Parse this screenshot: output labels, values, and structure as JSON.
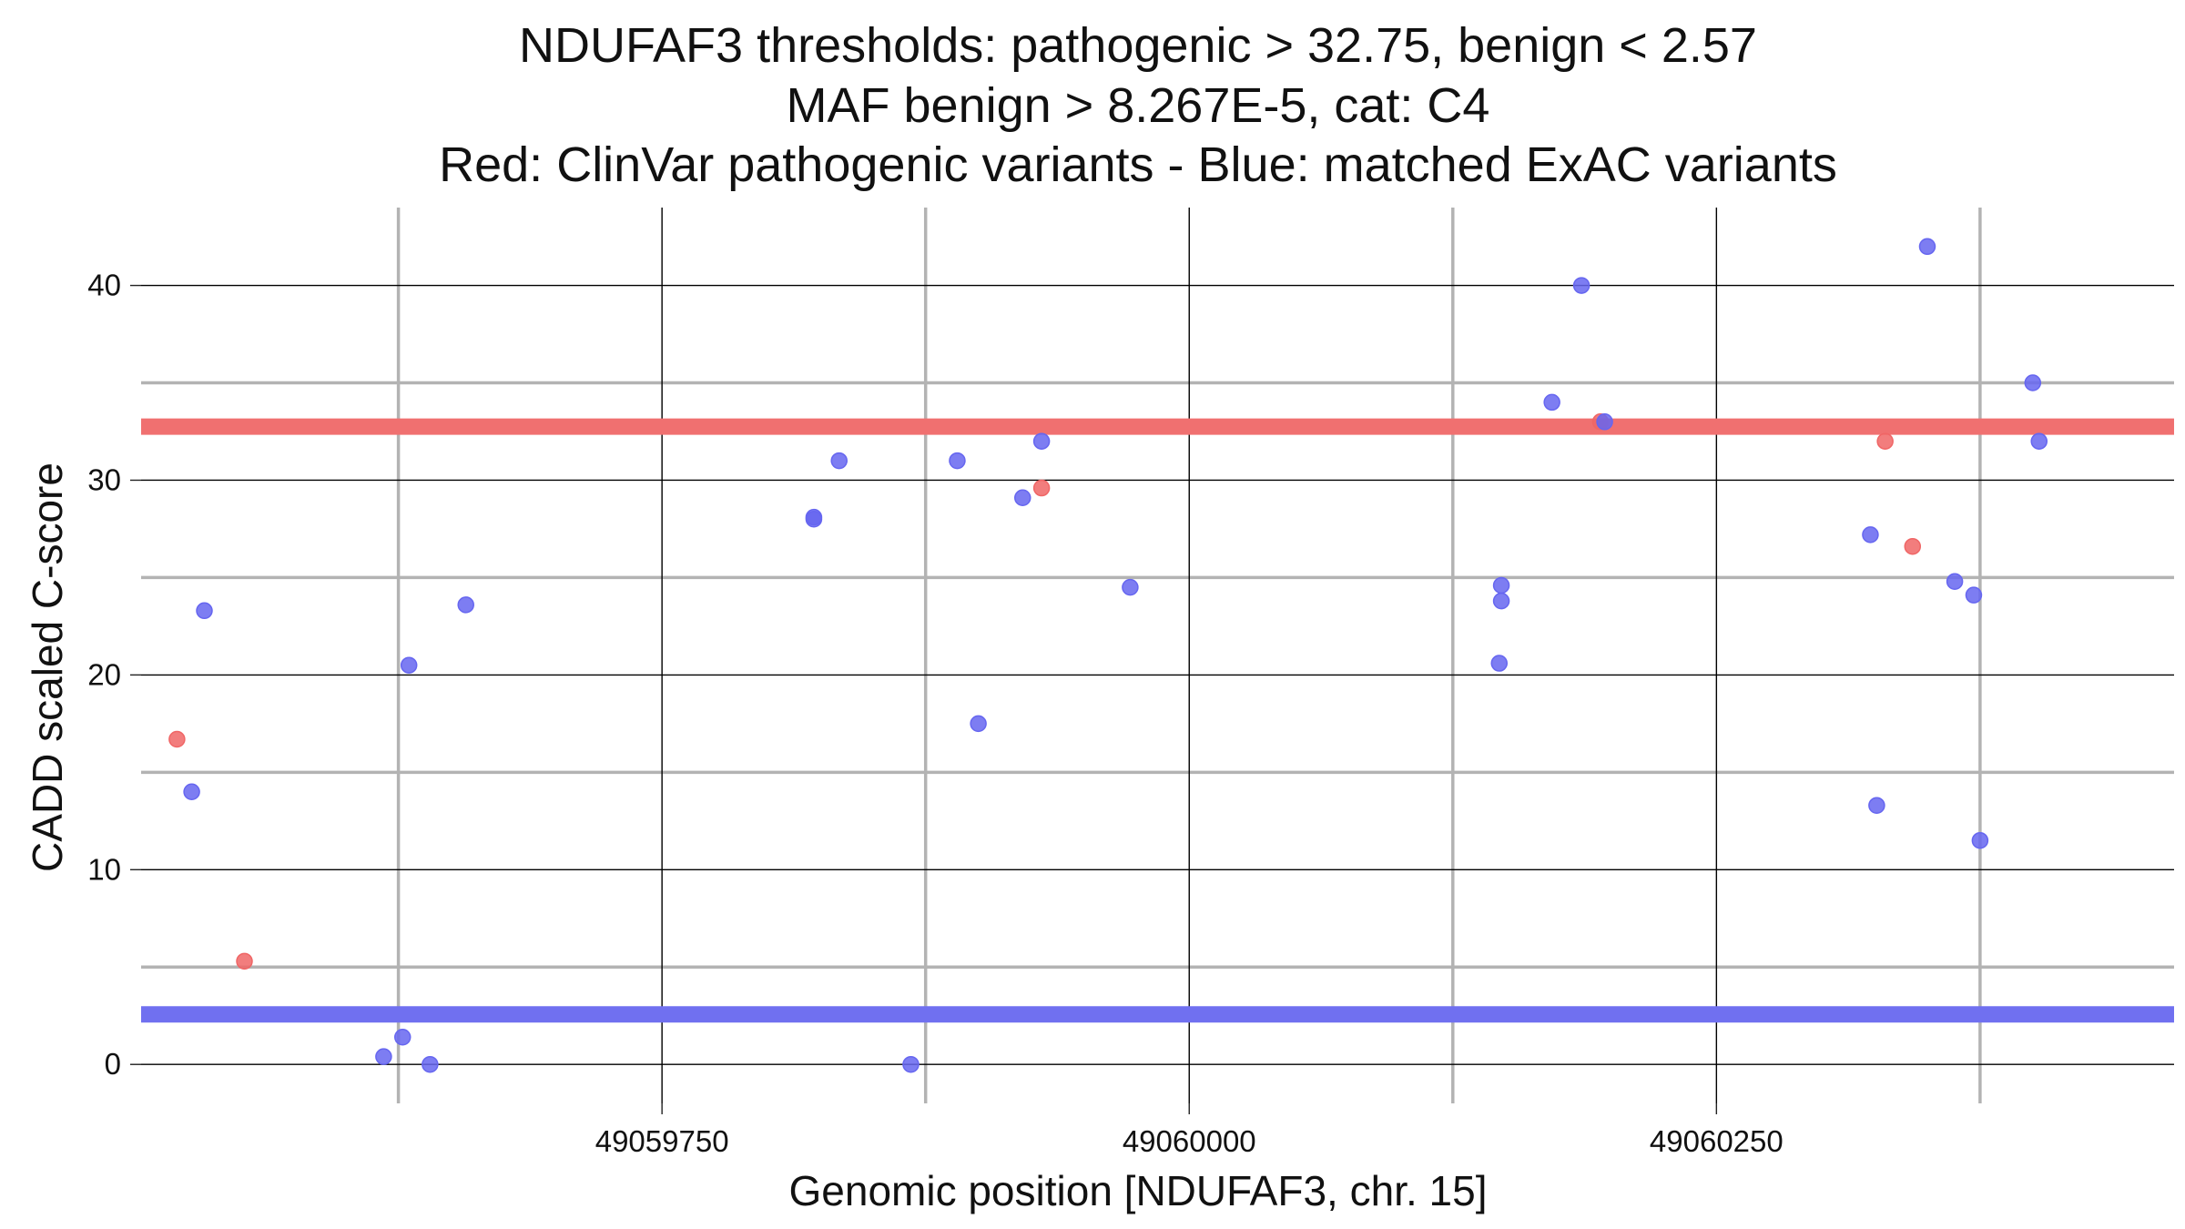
{
  "chart_data": {
    "type": "scatter",
    "title_lines": [
      "NDUFAF3 thresholds: pathogenic > 32.75, benign < 2.57",
      "MAF benign > 8.267E-5, cat: C4",
      "Red: ClinVar pathogenic variants - Blue: matched ExAC variants"
    ],
    "xlabel": "Genomic position [NDUFAF3, chr. 15]",
    "ylabel": "CADD scaled C-score",
    "xlim": [
      49059503,
      49060467
    ],
    "ylim": [
      -2.0,
      44.0
    ],
    "x_major_ticks": [
      49059750,
      49060000,
      49060250
    ],
    "x_major_tick_labels": [
      "49059750",
      "49060000",
      "49060250"
    ],
    "x_minor_gridlines": [
      49059625,
      49059875,
      49060125,
      49060375
    ],
    "y_major_ticks": [
      0,
      10,
      20,
      30,
      40
    ],
    "y_major_tick_labels": [
      "0",
      "10",
      "20",
      "30",
      "40"
    ],
    "y_minor_gridlines": [
      5,
      15,
      25,
      35
    ],
    "grid": true,
    "thresholds": [
      {
        "name": "pathogenic",
        "value": 32.75,
        "color": "#f07070"
      },
      {
        "name": "benign",
        "value": 2.57,
        "color": "#7070f0"
      }
    ],
    "series": [
      {
        "color": "#f06666",
        "points": [
          {
            "x": 49059520,
            "y": 16.7
          },
          {
            "x": 49059552,
            "y": 5.3
          },
          {
            "x": 49059930,
            "y": 29.6
          },
          {
            "x": 49060195,
            "y": 33.0
          },
          {
            "x": 49060330,
            "y": 32.0
          },
          {
            "x": 49060343,
            "y": 26.6
          }
        ]
      },
      {
        "color": "#6666f0",
        "points": [
          {
            "x": 49059527,
            "y": 14.0
          },
          {
            "x": 49059533,
            "y": 23.3
          },
          {
            "x": 49059618,
            "y": 0.4
          },
          {
            "x": 49059627,
            "y": 1.4
          },
          {
            "x": 49059630,
            "y": 20.5
          },
          {
            "x": 49059640,
            "y": 0.0
          },
          {
            "x": 49059657,
            "y": 23.6
          },
          {
            "x": 49059822,
            "y": 28.1
          },
          {
            "x": 49059822,
            "y": 28.0
          },
          {
            "x": 49059834,
            "y": 31.0
          },
          {
            "x": 49059868,
            "y": 0.0
          },
          {
            "x": 49059890,
            "y": 31.0
          },
          {
            "x": 49059900,
            "y": 17.5
          },
          {
            "x": 49059921,
            "y": 29.1
          },
          {
            "x": 49059930,
            "y": 32.0
          },
          {
            "x": 49059972,
            "y": 24.5
          },
          {
            "x": 49060148,
            "y": 24.6
          },
          {
            "x": 49060148,
            "y": 23.8
          },
          {
            "x": 49060147,
            "y": 20.6
          },
          {
            "x": 49060172,
            "y": 34.0
          },
          {
            "x": 49060186,
            "y": 40.0
          },
          {
            "x": 49060197,
            "y": 33.0
          },
          {
            "x": 49060323,
            "y": 27.2
          },
          {
            "x": 49060326,
            "y": 13.3
          },
          {
            "x": 49060350,
            "y": 42.0
          },
          {
            "x": 49060363,
            "y": 24.8
          },
          {
            "x": 49060372,
            "y": 24.1
          },
          {
            "x": 49060375,
            "y": 11.5
          },
          {
            "x": 49060400,
            "y": 35.0
          },
          {
            "x": 49060403,
            "y": 32.0
          }
        ]
      }
    ]
  }
}
